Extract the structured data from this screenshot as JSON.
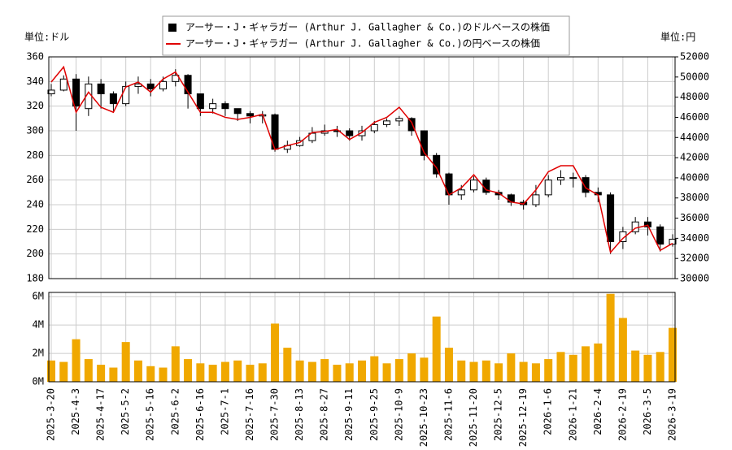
{
  "chart_data": [
    {
      "type": "candlestick",
      "y_unit": "単位:ドル",
      "y2_unit": "単位:円",
      "ylim": [
        180,
        360
      ],
      "yticks": [
        180,
        200,
        220,
        240,
        260,
        280,
        300,
        320,
        340,
        360
      ],
      "y2lim": [
        30000,
        52000
      ],
      "y2ticks": [
        30000,
        32000,
        34000,
        36000,
        38000,
        40000,
        42000,
        44000,
        46000,
        48000,
        50000,
        52000
      ],
      "grid": true,
      "legend": "top",
      "series": [
        {
          "name": "アーサー・J・ギャラガー (Arthur J. Gallagher & Co.)のドルベースの株価",
          "color": "#000000",
          "open": [
            330,
            333,
            342,
            318,
            338,
            330,
            322,
            336,
            338,
            334,
            340,
            345,
            330,
            318,
            322,
            318,
            314,
            312,
            313,
            285,
            288,
            292,
            298,
            300,
            300,
            296,
            300,
            305,
            308,
            310,
            300,
            280,
            265,
            248,
            252,
            260,
            250,
            248,
            242,
            240,
            248,
            260,
            262,
            262,
            250,
            248,
            210,
            218,
            226,
            222,
            208
          ],
          "high": [
            338,
            345,
            346,
            344,
            342,
            332,
            340,
            344,
            342,
            344,
            350,
            346,
            330,
            326,
            324,
            318,
            316,
            316,
            314,
            292,
            295,
            303,
            305,
            304,
            302,
            304,
            308,
            310,
            312,
            311,
            300,
            282,
            266,
            256,
            263,
            262,
            252,
            249,
            244,
            256,
            264,
            268,
            266,
            264,
            254,
            250,
            222,
            230,
            230,
            224,
            216
          ],
          "low": [
            328,
            332,
            300,
            312,
            318,
            316,
            320,
            330,
            328,
            332,
            336,
            318,
            312,
            314,
            312,
            308,
            306,
            306,
            283,
            282,
            287,
            290,
            296,
            295,
            292,
            292,
            298,
            303,
            304,
            296,
            276,
            262,
            240,
            244,
            250,
            248,
            244,
            239,
            236,
            238,
            246,
            256,
            254,
            246,
            242,
            200,
            204,
            216,
            215,
            202,
            206
          ],
          "close": [
            333,
            342,
            320,
            338,
            330,
            322,
            336,
            338,
            334,
            340,
            345,
            330,
            318,
            322,
            318,
            314,
            312,
            313,
            285,
            288,
            292,
            298,
            300,
            300,
            296,
            300,
            305,
            308,
            310,
            300,
            280,
            265,
            248,
            252,
            260,
            250,
            248,
            242,
            240,
            248,
            260,
            262,
            262,
            250,
            248,
            210,
            218,
            226,
            222,
            208,
            212
          ]
        },
        {
          "name": "アーサー・J・ギャラガー (Arthur J. Gallagher & Co.)の円ベースの株価",
          "color": "#e00000",
          "axis": "y2",
          "values": [
            49500,
            51000,
            46500,
            48500,
            47000,
            46500,
            49000,
            49500,
            48500,
            49800,
            50500,
            48500,
            46500,
            46500,
            46000,
            45800,
            46000,
            46300,
            42800,
            43200,
            43500,
            44500,
            44600,
            44800,
            43800,
            44500,
            45500,
            46000,
            47000,
            45500,
            42500,
            41000,
            38300,
            39000,
            40300,
            38800,
            38500,
            37600,
            37400,
            38800,
            40600,
            41200,
            41200,
            39000,
            38300,
            32600,
            34000,
            35000,
            35300,
            32800,
            33500
          ]
        }
      ]
    },
    {
      "type": "bar",
      "color": "#f0a800",
      "categories": [
        "2025-3-20",
        null,
        "2025-4-3",
        null,
        "2025-4-17",
        null,
        "2025-5-2",
        null,
        "2025-5-16",
        null,
        "2025-6-2",
        null,
        "2025-6-16",
        null,
        "2025-7-1",
        null,
        "2025-7-16",
        null,
        "2025-7-30",
        null,
        "2025-8-13",
        null,
        "2025-8-27",
        null,
        "2025-9-11",
        null,
        "2025-9-25",
        null,
        "2025-10-9",
        null,
        "2025-10-23",
        null,
        "2025-11-6",
        null,
        "2025-11-20",
        null,
        "2025-12-5",
        null,
        "2025-12-19",
        null,
        "2026-1-6",
        null,
        "2026-1-21",
        null,
        "2026-2-4",
        null,
        "2026-2-19",
        null,
        "2026-3-5",
        null,
        "2026-3-19"
      ],
      "values": [
        1500000,
        1400000,
        3000000,
        1600000,
        1200000,
        1000000,
        2800000,
        1500000,
        1100000,
        1000000,
        2500000,
        1600000,
        1300000,
        1200000,
        1400000,
        1500000,
        1200000,
        1300000,
        4100000,
        2400000,
        1500000,
        1400000,
        1600000,
        1200000,
        1300000,
        1500000,
        1800000,
        1300000,
        1600000,
        2000000,
        1700000,
        4600000,
        2400000,
        1500000,
        1400000,
        1500000,
        1300000,
        2000000,
        1400000,
        1300000,
        1600000,
        2100000,
        1900000,
        2500000,
        2700000,
        6200000,
        4500000,
        2200000,
        1900000,
        2100000,
        3800000
      ],
      "ylim": [
        0,
        6300000
      ],
      "yticks": [
        {
          "value": 0,
          "label": "0M"
        },
        {
          "value": 2000000,
          "label": "2M"
        },
        {
          "value": 4000000,
          "label": "4M"
        },
        {
          "value": 6000000,
          "label": "6M"
        }
      ],
      "grid": true
    }
  ]
}
